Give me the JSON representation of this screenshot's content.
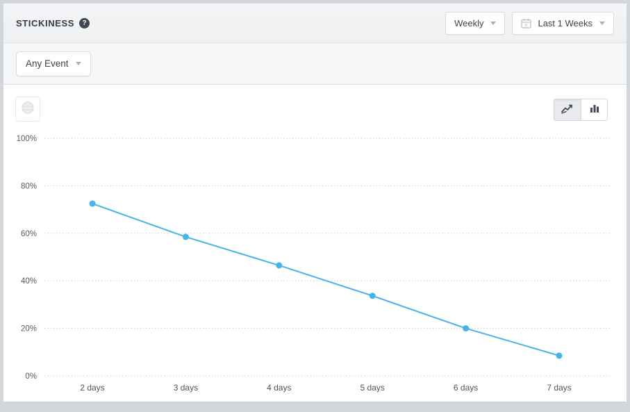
{
  "header": {
    "title": "STICKINESS",
    "help_icon": "?",
    "interval_value": "Weekly",
    "date_range_value": "Last 1 Weeks"
  },
  "filter": {
    "event_selector_value": "Any Event"
  },
  "toolbar": {
    "chart_type_options": [
      "line-chart-icon",
      "bar-chart-icon"
    ],
    "selected_chart_type": "line"
  },
  "chart_data": {
    "type": "line",
    "title": "Stickiness",
    "categories": [
      "2 days",
      "3 days",
      "4 days",
      "5 days",
      "6 days",
      "7 days"
    ],
    "values": [
      72.5,
      58.5,
      46.5,
      33.7,
      20,
      8.5
    ],
    "ylim": [
      0,
      100
    ],
    "yticks": [
      0,
      20,
      40,
      60,
      80,
      100
    ],
    "ytick_labels": [
      "0%",
      "20%",
      "40%",
      "60%",
      "80%",
      "100%"
    ],
    "xlabel": "",
    "ylabel": "",
    "grid": "horizontal-dotted",
    "legend": "none",
    "line_color": "#46b4e7"
  },
  "colors": {
    "accent_blue": "#46b4e7",
    "frame_gray": "#d2d6da",
    "grid_gray": "#c8ccd0",
    "axis_text": "#565c62"
  }
}
